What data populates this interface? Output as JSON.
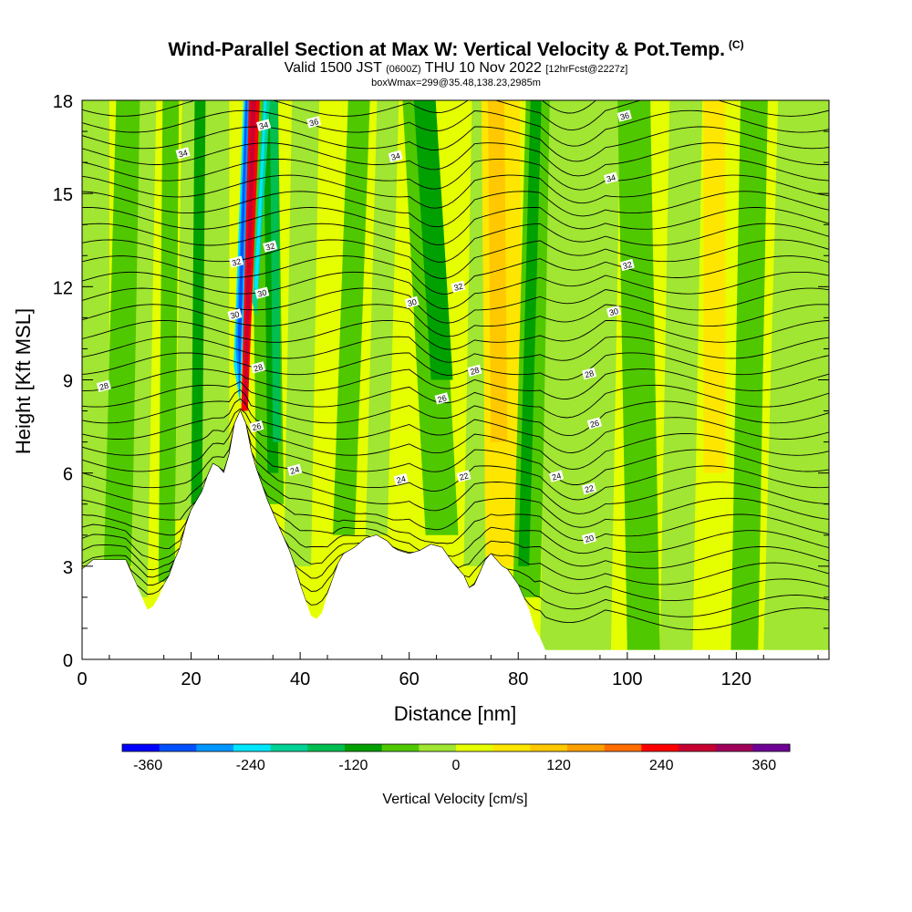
{
  "header": {
    "title": "Wind-Parallel Section at Max W: Vertical Velocity & Pot.Temp.",
    "title_units": "(C)",
    "valid_prefix": "Valid 1500 JST",
    "valid_utc": "(0600Z)",
    "valid_suffix": "THU 10 Nov 2022",
    "forecast": "[12hrFcst@2227z]",
    "box_info": "boxWmax=299@35.48,138.23,2985m"
  },
  "chart_data": {
    "type": "heatmap",
    "xlabel": "Distance [nm]",
    "ylabel": "Height [Kft MSL]",
    "xlim": [
      0,
      137
    ],
    "ylim": [
      0,
      18
    ],
    "x_ticks": [
      "0",
      "20",
      "40",
      "60",
      "80",
      "100",
      "120"
    ],
    "y_ticks": [
      "0",
      "3",
      "6",
      "9",
      "12",
      "15",
      "18"
    ],
    "colorbar": {
      "label": "Vertical Velocity [cm/s]",
      "range": [
        -390,
        390
      ],
      "tick_labels": [
        "-360",
        "-240",
        "-120",
        "0",
        "120",
        "240",
        "360"
      ],
      "colors": [
        "#0000ff",
        "#0050ff",
        "#0096ff",
        "#00e6ff",
        "#00d296",
        "#00be50",
        "#00a000",
        "#50c800",
        "#a0e632",
        "#e6ff00",
        "#ffe600",
        "#ffc800",
        "#ffa000",
        "#ff6e00",
        "#ff0000",
        "#c80032",
        "#a0005a",
        "#6e0096"
      ]
    },
    "terrain_heights_kft": [
      [
        0,
        2.9
      ],
      [
        2,
        3.2
      ],
      [
        4,
        3.2
      ],
      [
        6,
        3.2
      ],
      [
        8,
        3.2
      ],
      [
        10,
        2.4
      ],
      [
        11,
        2.0
      ],
      [
        12,
        1.6
      ],
      [
        13,
        1.7
      ],
      [
        14,
        2.0
      ],
      [
        15,
        2.4
      ],
      [
        16,
        2.7
      ],
      [
        17,
        3.2
      ],
      [
        18,
        3.6
      ],
      [
        19,
        4.3
      ],
      [
        20,
        4.8
      ],
      [
        21,
        5.1
      ],
      [
        22,
        5.4
      ],
      [
        23,
        5.9
      ],
      [
        24,
        6.3
      ],
      [
        25,
        6.2
      ],
      [
        26,
        6.0
      ],
      [
        27,
        6.6
      ],
      [
        28,
        7.6
      ],
      [
        29,
        8.0
      ],
      [
        30,
        7.6
      ],
      [
        31,
        6.7
      ],
      [
        32,
        6.1
      ],
      [
        33,
        5.6
      ],
      [
        34,
        5.1
      ],
      [
        35,
        4.7
      ],
      [
        36,
        4.3
      ],
      [
        37,
        3.9
      ],
      [
        38,
        3.5
      ],
      [
        39,
        3.0
      ],
      [
        40,
        2.4
      ],
      [
        41,
        1.9
      ],
      [
        42,
        1.4
      ],
      [
        43,
        1.3
      ],
      [
        44,
        1.5
      ],
      [
        45,
        2.1
      ],
      [
        46,
        2.6
      ],
      [
        47,
        3.1
      ],
      [
        48,
        3.4
      ],
      [
        50,
        3.6
      ],
      [
        52,
        3.9
      ],
      [
        54,
        4.0
      ],
      [
        56,
        3.8
      ],
      [
        57,
        3.6
      ],
      [
        58,
        3.5
      ],
      [
        60,
        3.4
      ],
      [
        62,
        3.5
      ],
      [
        64,
        3.7
      ],
      [
        66,
        3.6
      ],
      [
        68,
        3.1
      ],
      [
        70,
        2.7
      ],
      [
        71,
        2.3
      ],
      [
        72,
        2.4
      ],
      [
        73,
        2.8
      ],
      [
        74,
        3.2
      ],
      [
        75,
        3.4
      ],
      [
        76,
        3.2
      ],
      [
        77,
        3.0
      ],
      [
        78,
        2.9
      ],
      [
        80,
        2.4
      ],
      [
        81,
        2.0
      ],
      [
        82,
        1.6
      ],
      [
        83,
        1.0
      ],
      [
        84,
        0.7
      ],
      [
        85,
        0.3
      ],
      [
        90,
        0.3
      ],
      [
        100,
        0.3
      ],
      [
        110,
        0.3
      ],
      [
        120,
        0.3
      ],
      [
        130,
        0.3
      ],
      [
        137,
        0.3
      ]
    ],
    "contour_labels": [
      {
        "value": "36",
        "x": 42.5,
        "y": 17.3
      },
      {
        "value": "36",
        "x": 99.5,
        "y": 17.5
      },
      {
        "value": "34",
        "x": 18.5,
        "y": 16.3
      },
      {
        "value": "34",
        "x": 57.5,
        "y": 16.2
      },
      {
        "value": "34",
        "x": 97.0,
        "y": 15.5
      },
      {
        "value": "34",
        "x": 33.3,
        "y": 17.2
      },
      {
        "value": "32",
        "x": 34.5,
        "y": 13.3
      },
      {
        "value": "32",
        "x": 28.3,
        "y": 12.8
      },
      {
        "value": "32",
        "x": 69.0,
        "y": 12.0
      },
      {
        "value": "32",
        "x": 100.0,
        "y": 12.7
      },
      {
        "value": "30",
        "x": 60.5,
        "y": 11.5
      },
      {
        "value": "30",
        "x": 97.5,
        "y": 11.2
      },
      {
        "value": "30",
        "x": 28.0,
        "y": 11.1
      },
      {
        "value": "30",
        "x": 33.0,
        "y": 11.8
      },
      {
        "value": "28",
        "x": 32.3,
        "y": 9.4
      },
      {
        "value": "28",
        "x": 72.0,
        "y": 9.3
      },
      {
        "value": "28",
        "x": 93.0,
        "y": 9.2
      },
      {
        "value": "28",
        "x": 4.0,
        "y": 8.8
      },
      {
        "value": "26",
        "x": 66.0,
        "y": 8.4
      },
      {
        "value": "26",
        "x": 94.0,
        "y": 7.6
      },
      {
        "value": "26",
        "x": 32.0,
        "y": 7.5
      },
      {
        "value": "24",
        "x": 39.0,
        "y": 6.1
      },
      {
        "value": "24",
        "x": 58.5,
        "y": 5.8
      },
      {
        "value": "24",
        "x": 87.0,
        "y": 5.9
      },
      {
        "value": "22",
        "x": 70.0,
        "y": 5.9
      },
      {
        "value": "22",
        "x": 93.0,
        "y": 5.5
      },
      {
        "value": "20",
        "x": 93.0,
        "y": 3.9
      }
    ]
  }
}
